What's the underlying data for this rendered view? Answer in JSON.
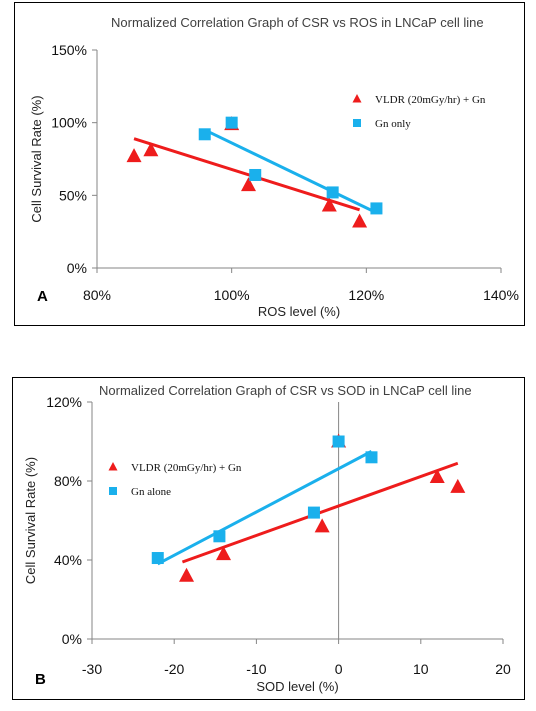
{
  "chart_data": [
    {
      "type": "scatter",
      "panel_label": "A",
      "title": "Normalized Correlation Graph of CSR vs ROS in LNCaP cell line",
      "xlabel": "ROS level (%)",
      "ylabel": "Cell Survival Rate (%)",
      "xlim": [
        80,
        140
      ],
      "ylim": [
        0,
        150
      ],
      "xticks": [
        80,
        100,
        120,
        140
      ],
      "xtick_labels": [
        "80%",
        "100%",
        "120%",
        "140%"
      ],
      "yticks": [
        0,
        50,
        100,
        150
      ],
      "ytick_labels": [
        "0%",
        "50%",
        "100%",
        "150%"
      ],
      "grid": false,
      "legend_position": "top-right",
      "series": [
        {
          "name": "VLDR (20mGy/hr) + Gn",
          "marker": "triangle",
          "color": "#ee1c1c",
          "points": [
            [
              85.5,
              77
            ],
            [
              88,
              81
            ],
            [
              100,
              99
            ],
            [
              102.5,
              57
            ],
            [
              114.5,
              43
            ],
            [
              119,
              32
            ]
          ],
          "trendline": [
            [
              85.5,
              89
            ],
            [
              119,
              40
            ]
          ]
        },
        {
          "name": "Gn only",
          "marker": "square",
          "color": "#1ab0ec",
          "points": [
            [
              96,
              92
            ],
            [
              100,
              100
            ],
            [
              103.5,
              64
            ],
            [
              115,
              52
            ],
            [
              121.5,
              41
            ]
          ],
          "trendline": [
            [
              96,
              95
            ],
            [
              121.5,
              38
            ]
          ]
        }
      ]
    },
    {
      "type": "scatter",
      "panel_label": "B",
      "title": "Normalized Correlation Graph of CSR vs SOD in LNCaP cell line",
      "xlabel": "SOD level (%)",
      "ylabel": "Cell Survival Rate (%)",
      "xlim": [
        -30,
        20
      ],
      "ylim": [
        0,
        120
      ],
      "xticks": [
        -30,
        -20,
        -10,
        0,
        10,
        20
      ],
      "xtick_labels": [
        "-30",
        "-20",
        "-10",
        "0",
        "10",
        "20"
      ],
      "yticks": [
        0,
        40,
        80,
        120
      ],
      "ytick_labels": [
        "0%",
        "40%",
        "80%",
        "120%"
      ],
      "grid": false,
      "legend_position": "top-left",
      "series": [
        {
          "name": "VLDR (20mGy/hr) + Gn",
          "marker": "triangle",
          "color": "#ee1c1c",
          "points": [
            [
              -18.5,
              32
            ],
            [
              -14,
              43
            ],
            [
              -2,
              57
            ],
            [
              0,
              100
            ],
            [
              12,
              82
            ],
            [
              14.5,
              77
            ]
          ],
          "trendline": [
            [
              -19,
              39
            ],
            [
              14.5,
              89
            ]
          ]
        },
        {
          "name": "Gn alone",
          "marker": "square",
          "color": "#1ab0ec",
          "points": [
            [
              -22,
              41
            ],
            [
              -14.5,
              52
            ],
            [
              -3,
              64
            ],
            [
              0,
              100
            ],
            [
              4,
              92
            ]
          ],
          "trendline": [
            [
              -22,
              38
            ],
            [
              4,
              95
            ]
          ]
        }
      ]
    }
  ]
}
